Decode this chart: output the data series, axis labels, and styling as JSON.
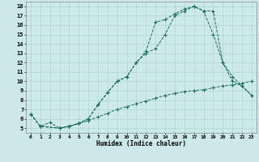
{
  "xlabel": "Humidex (Indice chaleur)",
  "bg_color": "#cce8e8",
  "grid_color": "#aad4d4",
  "line_color": "#1a6b5a",
  "xlim_min": -0.5,
  "xlim_max": 23.5,
  "ylim_min": 4.5,
  "ylim_max": 18.5,
  "xticks": [
    0,
    1,
    2,
    3,
    4,
    5,
    6,
    7,
    8,
    9,
    10,
    11,
    12,
    13,
    14,
    15,
    16,
    17,
    18,
    19,
    20,
    21,
    22,
    23
  ],
  "yticks": [
    5,
    6,
    7,
    8,
    9,
    10,
    11,
    12,
    13,
    14,
    15,
    16,
    17,
    18
  ],
  "series1_x": [
    0,
    1,
    2,
    3,
    4,
    5,
    6,
    7,
    8,
    9,
    10,
    11,
    12,
    13,
    14,
    15,
    16,
    17,
    18,
    19,
    20,
    21,
    22,
    23
  ],
  "series1_y": [
    6.5,
    5.2,
    5.6,
    5.0,
    5.2,
    5.5,
    5.8,
    6.2,
    6.6,
    7.0,
    7.3,
    7.6,
    7.9,
    8.2,
    8.5,
    8.7,
    8.9,
    9.0,
    9.1,
    9.3,
    9.5,
    9.6,
    9.8,
    10.0
  ],
  "series2_x": [
    0,
    1,
    3,
    4,
    5,
    6,
    7,
    8,
    9,
    10,
    11,
    12,
    13,
    14,
    15,
    16,
    17,
    18,
    19,
    20,
    21,
    22,
    23
  ],
  "series2_y": [
    6.5,
    5.2,
    5.0,
    5.2,
    5.5,
    6.0,
    7.5,
    8.8,
    10.0,
    10.5,
    12.0,
    13.0,
    13.5,
    15.0,
    17.0,
    17.5,
    18.0,
    17.5,
    15.0,
    12.0,
    10.0,
    9.5,
    8.5
  ],
  "series3_x": [
    0,
    1,
    3,
    4,
    5,
    6,
    7,
    8,
    9,
    10,
    11,
    12,
    13,
    14,
    15,
    16,
    17,
    18,
    19,
    20,
    21,
    22,
    23
  ],
  "series3_y": [
    6.5,
    5.2,
    5.0,
    5.2,
    5.5,
    6.0,
    7.5,
    8.8,
    10.0,
    10.5,
    12.0,
    13.2,
    16.3,
    16.6,
    17.2,
    17.7,
    18.0,
    17.5,
    17.5,
    12.0,
    10.5,
    9.5,
    8.5
  ]
}
